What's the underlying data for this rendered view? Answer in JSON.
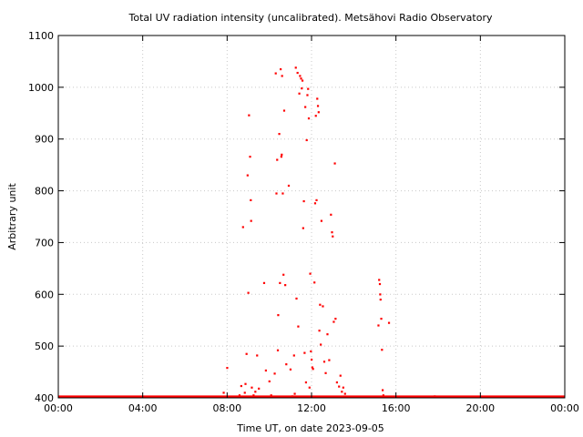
{
  "chart_data": {
    "type": "scatter",
    "title": "Total UV radiation intensity (uncalibrated). Metsähovi Radio Observatory",
    "xlabel": "Time UT, on date 2023-09-05",
    "ylabel": "Arbitrary unit",
    "xlim": [
      "00:00",
      "24:00"
    ],
    "ylim": [
      400,
      1100
    ],
    "x_ticks": [
      "00:00",
      "04:00",
      "08:00",
      "12:00",
      "16:00",
      "20:00",
      "00:00"
    ],
    "y_ticks": [
      400,
      500,
      600,
      700,
      800,
      900,
      1000,
      1100
    ],
    "grid": true,
    "marker_color": "#ff0000",
    "baseline": {
      "value": 402,
      "from": "00:00",
      "to": "24:00"
    },
    "points": [
      {
        "x": "07:50",
        "y": 410
      },
      {
        "x": "08:00",
        "y": 458
      },
      {
        "x": "08:35",
        "y": 405
      },
      {
        "x": "08:40",
        "y": 423
      },
      {
        "x": "08:45",
        "y": 730
      },
      {
        "x": "08:50",
        "y": 410
      },
      {
        "x": "08:52",
        "y": 427
      },
      {
        "x": "08:55",
        "y": 485
      },
      {
        "x": "08:58",
        "y": 830
      },
      {
        "x": "09:00",
        "y": 603
      },
      {
        "x": "09:02",
        "y": 946
      },
      {
        "x": "09:05",
        "y": 866
      },
      {
        "x": "09:07",
        "y": 782
      },
      {
        "x": "09:08",
        "y": 742
      },
      {
        "x": "09:10",
        "y": 420
      },
      {
        "x": "09:15",
        "y": 405
      },
      {
        "x": "09:20",
        "y": 412
      },
      {
        "x": "09:25",
        "y": 482
      },
      {
        "x": "09:30",
        "y": 418
      },
      {
        "x": "09:45",
        "y": 622
      },
      {
        "x": "09:50",
        "y": 453
      },
      {
        "x": "10:00",
        "y": 432
      },
      {
        "x": "10:05",
        "y": 405
      },
      {
        "x": "10:15",
        "y": 447
      },
      {
        "x": "10:18",
        "y": 1027
      },
      {
        "x": "10:20",
        "y": 795
      },
      {
        "x": "10:22",
        "y": 860
      },
      {
        "x": "10:24",
        "y": 492
      },
      {
        "x": "10:25",
        "y": 560
      },
      {
        "x": "10:28",
        "y": 910
      },
      {
        "x": "10:30",
        "y": 622
      },
      {
        "x": "10:32",
        "y": 1035
      },
      {
        "x": "10:34",
        "y": 866
      },
      {
        "x": "10:35",
        "y": 870
      },
      {
        "x": "10:36",
        "y": 1022
      },
      {
        "x": "10:38",
        "y": 795
      },
      {
        "x": "10:40",
        "y": 638
      },
      {
        "x": "10:42",
        "y": 955
      },
      {
        "x": "10:45",
        "y": 618
      },
      {
        "x": "10:48",
        "y": 465
      },
      {
        "x": "10:55",
        "y": 810
      },
      {
        "x": "11:00",
        "y": 455
      },
      {
        "x": "11:05",
        "y": 403
      },
      {
        "x": "11:10",
        "y": 482
      },
      {
        "x": "11:12",
        "y": 408
      },
      {
        "x": "11:15",
        "y": 1038
      },
      {
        "x": "11:17",
        "y": 592
      },
      {
        "x": "11:20",
        "y": 1028
      },
      {
        "x": "11:22",
        "y": 538
      },
      {
        "x": "11:25",
        "y": 988
      },
      {
        "x": "11:27",
        "y": 1022
      },
      {
        "x": "11:30",
        "y": 1017
      },
      {
        "x": "11:32",
        "y": 998
      },
      {
        "x": "11:34",
        "y": 1013
      },
      {
        "x": "11:36",
        "y": 728
      },
      {
        "x": "11:38",
        "y": 780
      },
      {
        "x": "11:40",
        "y": 487
      },
      {
        "x": "11:42",
        "y": 962
      },
      {
        "x": "11:44",
        "y": 430
      },
      {
        "x": "11:46",
        "y": 898
      },
      {
        "x": "11:48",
        "y": 985
      },
      {
        "x": "11:50",
        "y": 997
      },
      {
        "x": "11:52",
        "y": 940
      },
      {
        "x": "11:54",
        "y": 420
      },
      {
        "x": "11:56",
        "y": 640
      },
      {
        "x": "11:58",
        "y": 490
      },
      {
        "x": "12:00",
        "y": 474
      },
      {
        "x": "12:02",
        "y": 459
      },
      {
        "x": "12:04",
        "y": 456
      },
      {
        "x": "12:08",
        "y": 623
      },
      {
        "x": "12:10",
        "y": 776
      },
      {
        "x": "12:12",
        "y": 945
      },
      {
        "x": "12:14",
        "y": 782
      },
      {
        "x": "12:16",
        "y": 978
      },
      {
        "x": "12:18",
        "y": 964
      },
      {
        "x": "12:20",
        "y": 952
      },
      {
        "x": "12:22",
        "y": 530
      },
      {
        "x": "12:24",
        "y": 580
      },
      {
        "x": "12:26",
        "y": 503
      },
      {
        "x": "12:28",
        "y": 742
      },
      {
        "x": "12:32",
        "y": 577
      },
      {
        "x": "12:36",
        "y": 470
      },
      {
        "x": "12:40",
        "y": 448
      },
      {
        "x": "12:45",
        "y": 523
      },
      {
        "x": "12:50",
        "y": 473
      },
      {
        "x": "12:55",
        "y": 754
      },
      {
        "x": "12:58",
        "y": 720
      },
      {
        "x": "13:00",
        "y": 712
      },
      {
        "x": "13:03",
        "y": 547
      },
      {
        "x": "13:06",
        "y": 853
      },
      {
        "x": "13:08",
        "y": 553
      },
      {
        "x": "13:12",
        "y": 430
      },
      {
        "x": "13:18",
        "y": 422
      },
      {
        "x": "13:22",
        "y": 443
      },
      {
        "x": "13:26",
        "y": 412
      },
      {
        "x": "13:30",
        "y": 420
      },
      {
        "x": "13:35",
        "y": 408
      },
      {
        "x": "15:10",
        "y": 540
      },
      {
        "x": "15:12",
        "y": 628
      },
      {
        "x": "15:14",
        "y": 620
      },
      {
        "x": "15:15",
        "y": 600
      },
      {
        "x": "15:16",
        "y": 590
      },
      {
        "x": "15:18",
        "y": 553
      },
      {
        "x": "15:20",
        "y": 493
      },
      {
        "x": "15:22",
        "y": 415
      },
      {
        "x": "15:24",
        "y": 405
      },
      {
        "x": "15:40",
        "y": 545
      },
      {
        "x": "17:50",
        "y": 403
      }
    ]
  }
}
